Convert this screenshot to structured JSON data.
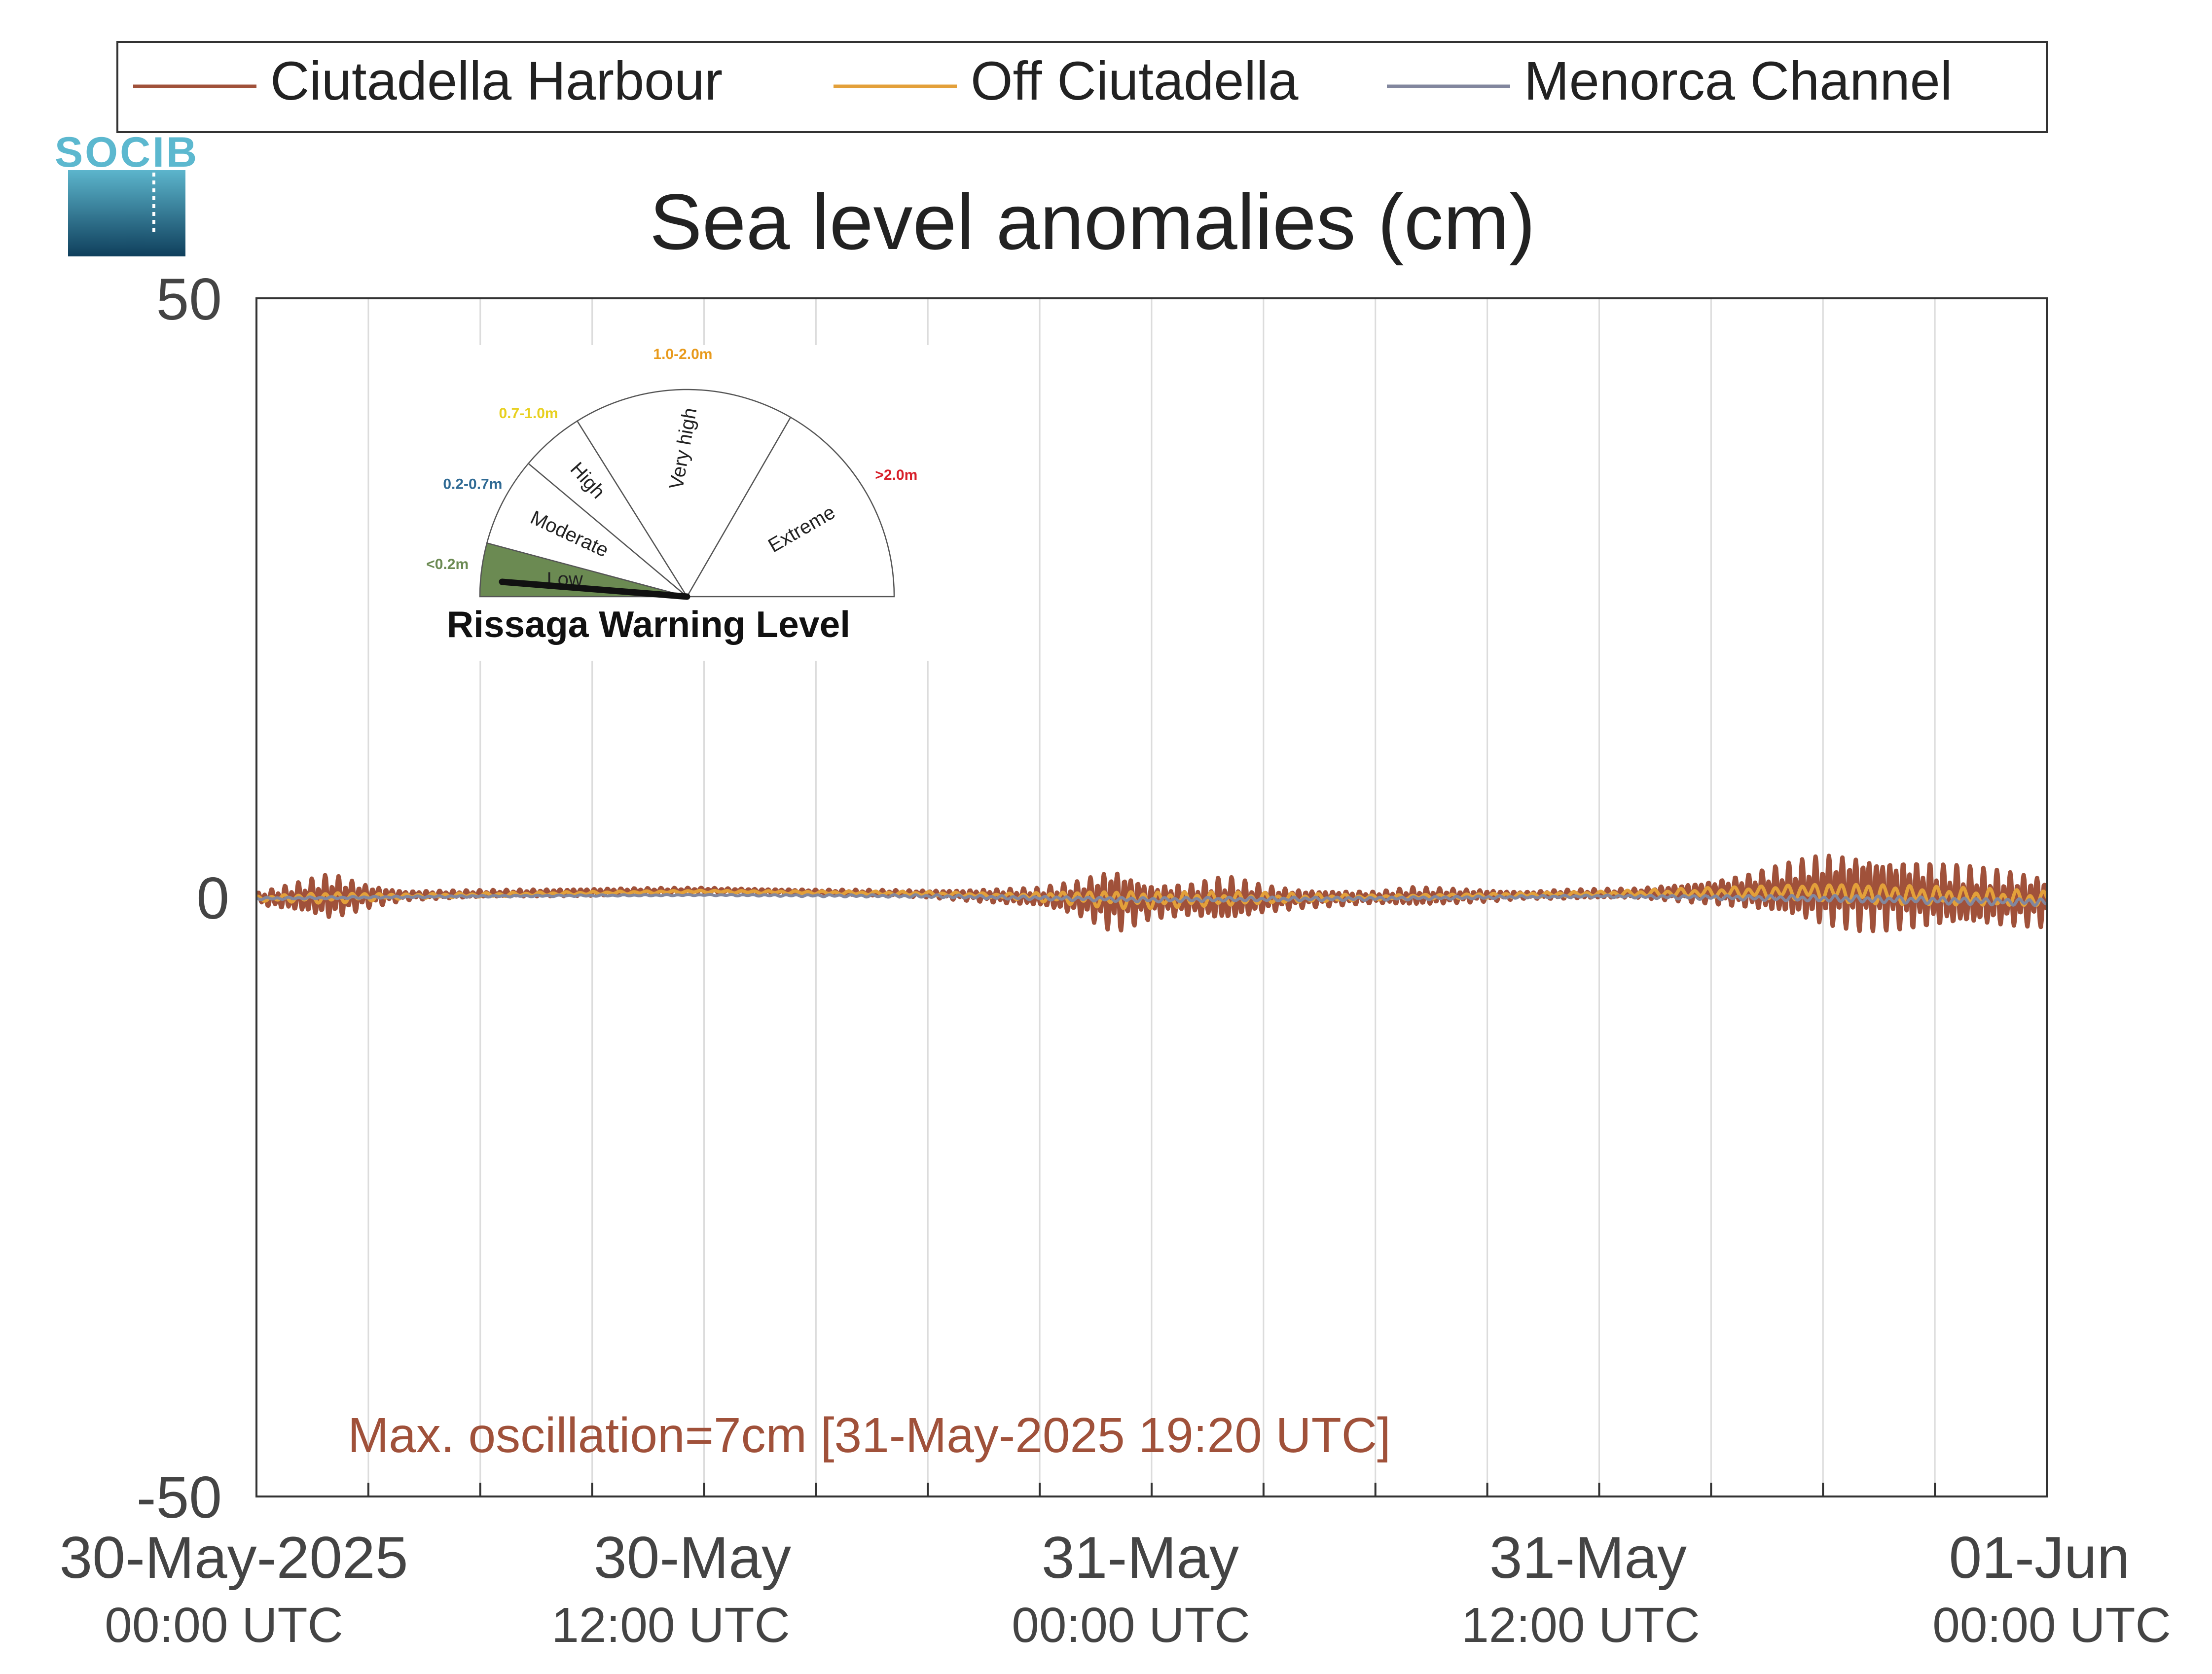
{
  "chart_data": {
    "type": "line",
    "title": "Sea level anomalies (cm)",
    "xlabel": "",
    "ylabel": "",
    "ylim": [
      -50,
      50
    ],
    "y_ticks": [
      "50",
      "0",
      "-50"
    ],
    "xlim_hours": [
      0,
      48
    ],
    "x_ticks": [
      {
        "date": "30-May-2025",
        "time": "00:00 UTC"
      },
      {
        "date": "30-May",
        "time": "12:00 UTC"
      },
      {
        "date": "31-May",
        "time": "00:00 UTC"
      },
      {
        "date": "31-May",
        "time": "12:00 UTC"
      },
      {
        "date": "01-Jun",
        "time": "00:00 UTC"
      }
    ],
    "grid": "vertical, every 3 hours",
    "legend_position": "top",
    "series": [
      {
        "name": "Ciutadella Harbour",
        "color": "#a0513a",
        "envelope": [
          [
            0,
            0.5
          ],
          [
            1,
            1.2
          ],
          [
            2,
            2.0
          ],
          [
            3,
            1.0
          ],
          [
            4,
            0.4
          ],
          [
            6,
            0.3
          ],
          [
            9,
            0.3
          ],
          [
            12,
            0.2
          ],
          [
            15,
            0.2
          ],
          [
            18,
            0.3
          ],
          [
            21,
            0.8
          ],
          [
            22,
            1.5
          ],
          [
            23,
            2.8
          ],
          [
            24,
            1.5
          ],
          [
            25,
            1.4
          ],
          [
            26,
            2.0
          ],
          [
            27,
            1.2
          ],
          [
            28,
            0.8
          ],
          [
            30,
            0.5
          ],
          [
            31,
            0.8
          ],
          [
            33,
            0.5
          ],
          [
            34,
            0.3
          ],
          [
            35,
            0.4
          ],
          [
            37,
            0.4
          ],
          [
            38,
            0.7
          ],
          [
            39,
            1.0
          ],
          [
            40,
            1.5
          ],
          [
            41,
            2.3
          ],
          [
            42,
            3.1
          ],
          [
            43,
            3.3
          ],
          [
            44,
            3.1
          ],
          [
            45,
            2.8
          ],
          [
            46,
            2.6
          ],
          [
            47,
            2.4
          ],
          [
            48,
            2.2
          ]
        ],
        "baseline": [
          [
            0,
            -0.1
          ],
          [
            6,
            0.3
          ],
          [
            12,
            0.6
          ],
          [
            18,
            0.3
          ],
          [
            24,
            -0.3
          ],
          [
            30,
            0.0
          ],
          [
            36,
            0.3
          ],
          [
            42,
            0.6
          ],
          [
            48,
            -0.3
          ]
        ]
      },
      {
        "name": "Off Ciutadella",
        "color": "#e3a03a",
        "envelope": [
          [
            0,
            0.2
          ],
          [
            2,
            0.5
          ],
          [
            4,
            0.2
          ],
          [
            12,
            0.1
          ],
          [
            20,
            0.2
          ],
          [
            23,
            0.8
          ],
          [
            26,
            0.6
          ],
          [
            30,
            0.2
          ],
          [
            36,
            0.2
          ],
          [
            40,
            0.5
          ],
          [
            43,
            0.9
          ],
          [
            48,
            0.7
          ]
        ],
        "baseline": [
          [
            0,
            -0.1
          ],
          [
            6,
            0.2
          ],
          [
            12,
            0.5
          ],
          [
            18,
            0.3
          ],
          [
            24,
            -0.2
          ],
          [
            30,
            0.0
          ],
          [
            36,
            0.3
          ],
          [
            42,
            0.5
          ],
          [
            48,
            -0.2
          ]
        ]
      },
      {
        "name": "Menorca Channel",
        "color": "#82879e",
        "envelope": [
          [
            0,
            0.1
          ],
          [
            12,
            0.05
          ],
          [
            24,
            0.2
          ],
          [
            36,
            0.1
          ],
          [
            43,
            0.3
          ],
          [
            48,
            0.3
          ]
        ],
        "baseline": [
          [
            0,
            -0.1
          ],
          [
            6,
            0.1
          ],
          [
            12,
            0.2
          ],
          [
            18,
            0.1
          ],
          [
            24,
            -0.2
          ],
          [
            30,
            -0.1
          ],
          [
            36,
            0.1
          ],
          [
            42,
            -0.1
          ],
          [
            48,
            -0.4
          ]
        ]
      }
    ],
    "annotation": {
      "text": "Max. oscillation=7cm [31-May-2025 19:20 UTC]",
      "color": "#a0513a"
    }
  },
  "logo": {
    "text": "SOCIB"
  },
  "warning_gauge": {
    "title": "Rissaga Warning Level",
    "current_level": "Low",
    "levels": [
      {
        "label": "Low",
        "range": "<0.2m",
        "color": "#6b8a52"
      },
      {
        "label": "Moderate",
        "range": "0.2-0.7m",
        "color": "#2f6a94"
      },
      {
        "label": "High",
        "range": "0.7-1.0m",
        "color": "#e8d020"
      },
      {
        "label": "Very high",
        "range": "1.0-2.0m",
        "color": "#e89a1c"
      },
      {
        "label": "Extreme",
        "range": ">2.0m",
        "color": "#d8202a"
      }
    ]
  }
}
